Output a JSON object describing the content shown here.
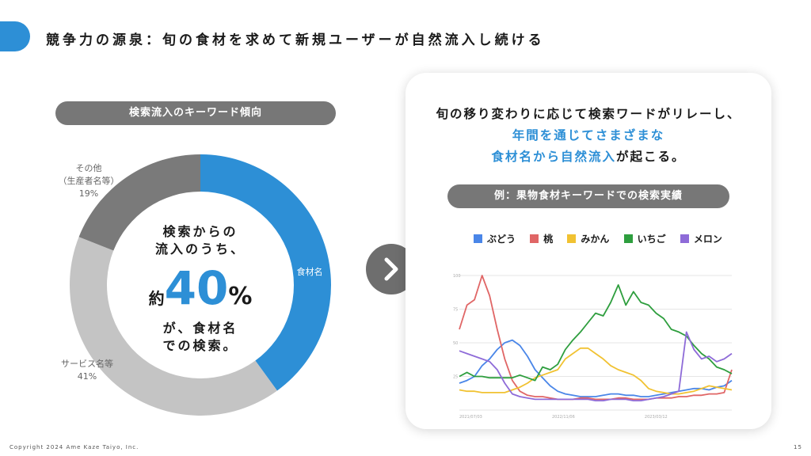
{
  "header": {
    "title": "競争力の源泉：旬の食材を求めて新規ユーザーが自然流入し続ける"
  },
  "left": {
    "pill_label": "検索流入のキーワード傾向",
    "segments": [
      {
        "label": "食材名",
        "percent": 40,
        "color": "#2d8fd6"
      },
      {
        "label": "サービス名等",
        "percent": 41,
        "color": "#c4c4c4"
      },
      {
        "label": "その他",
        "percent": 19,
        "color": "#7a7a7a"
      }
    ],
    "label_other_line1": "その他",
    "label_other_line2": "（生産者名等）",
    "label_other_pct": "19%",
    "label_service": "サービス名等",
    "label_service_pct": "41%",
    "label_food": "食材名",
    "center_line1": "検索からの",
    "center_line2": "流入のうち、",
    "center_yaku": "約",
    "center_big": "40",
    "center_pct": "%",
    "center_line3": "が、食材名",
    "center_line4": "での検索。"
  },
  "card": {
    "headline_line1": "旬の移り変わりに応じて検索ワードがリレーし、",
    "headline_line2": "年間を通じてさまざまな",
    "headline_line3_blue": "食材名から自然流入",
    "headline_line3_tail": "が起こる。",
    "pill_label": "例：果物食材キーワードでの検索実績"
  },
  "chart_data": {
    "type": "line",
    "x_tick_labels": [
      "2021/07/03",
      "2022/11/06",
      "2023/03/12"
    ],
    "y_tick_labels": [
      "100",
      "75",
      "50",
      "25"
    ],
    "ylim": [
      0,
      100
    ],
    "series": [
      {
        "name": "ぶどう",
        "color": "#4a86e8",
        "values": [
          20,
          22,
          25,
          33,
          38,
          45,
          50,
          52,
          48,
          40,
          30,
          24,
          18,
          14,
          12,
          11,
          10,
          10,
          10,
          11,
          12,
          12,
          11,
          11,
          10,
          10,
          11,
          12,
          13,
          14,
          15,
          16,
          16,
          15,
          17,
          18,
          22
        ]
      },
      {
        "name": "桃",
        "color": "#e06666",
        "values": [
          60,
          78,
          82,
          100,
          85,
          60,
          38,
          22,
          14,
          11,
          10,
          10,
          9,
          8,
          8,
          8,
          9,
          9,
          8,
          8,
          8,
          9,
          9,
          8,
          8,
          8,
          9,
          9,
          9,
          10,
          10,
          11,
          11,
          12,
          12,
          13,
          30
        ]
      },
      {
        "name": "みかん",
        "color": "#f1c232",
        "values": [
          15,
          14,
          14,
          13,
          13,
          13,
          13,
          15,
          17,
          20,
          24,
          26,
          28,
          30,
          38,
          42,
          46,
          46,
          42,
          38,
          33,
          30,
          28,
          26,
          22,
          16,
          14,
          13,
          12,
          12,
          13,
          14,
          16,
          18,
          17,
          16,
          15
        ]
      },
      {
        "name": "いちご",
        "color": "#2e9e3e",
        "values": [
          25,
          28,
          25,
          25,
          24,
          24,
          24,
          24,
          26,
          24,
          22,
          32,
          30,
          34,
          45,
          52,
          58,
          65,
          72,
          70,
          80,
          93,
          78,
          88,
          80,
          78,
          72,
          68,
          60,
          58,
          55,
          48,
          42,
          38,
          32,
          30,
          27
        ]
      },
      {
        "name": "メロン",
        "color": "#8e6bd8",
        "values": [
          44,
          42,
          40,
          38,
          36,
          30,
          20,
          12,
          10,
          9,
          8,
          8,
          8,
          8,
          8,
          8,
          8,
          8,
          7,
          7,
          8,
          8,
          8,
          7,
          7,
          8,
          9,
          10,
          12,
          14,
          58,
          45,
          38,
          40,
          36,
          38,
          42
        ]
      }
    ]
  },
  "footer": {
    "copyright": "Copyright 2024 Ame Kaze Taiyo, Inc.",
    "page_number": "15"
  }
}
